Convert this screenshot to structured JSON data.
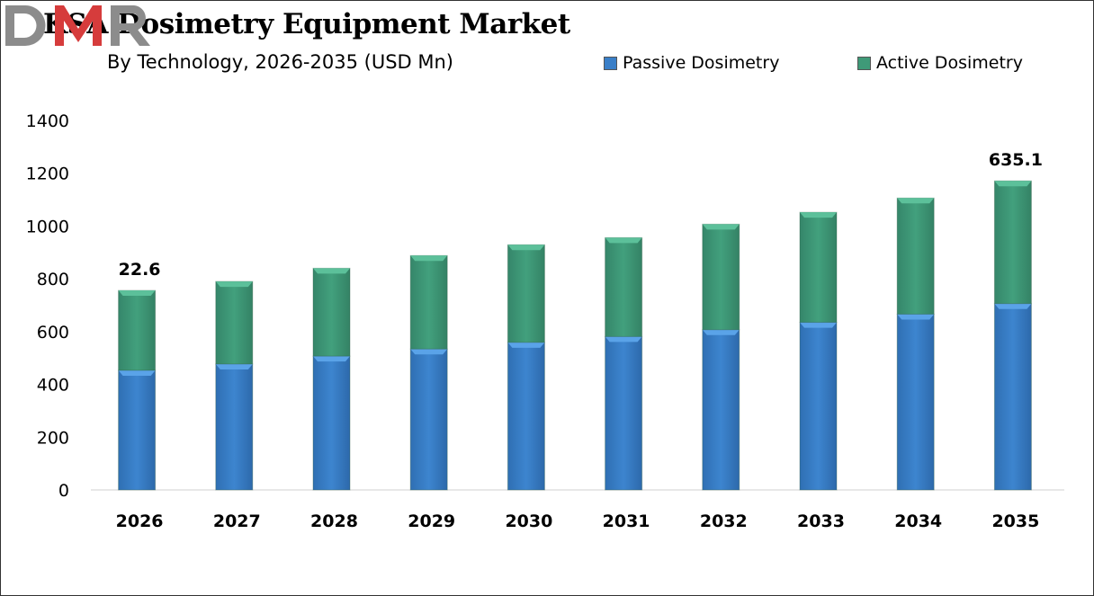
{
  "chart_data": {
    "type": "bar",
    "stacked": true,
    "title": "KSA Dosimetry Equipment Market",
    "subtitle": "By Technology, 2026-2035 (USD Mn)",
    "categories": [
      "2026",
      "2027",
      "2028",
      "2029",
      "2030",
      "2031",
      "2032",
      "2033",
      "2034",
      "2035"
    ],
    "series": [
      {
        "name": "Passive Dosimetry",
        "color": "#3a7fc8",
        "values": [
          453,
          477,
          507,
          534,
          559,
          581,
          607,
          635,
          666,
          706
        ]
      },
      {
        "name": "Active Dosimetry",
        "color": "#3f9a78",
        "values": [
          303,
          313,
          333,
          354,
          370,
          375,
          400,
          417,
          440,
          465
        ]
      }
    ],
    "ylim": [
      0,
      1400
    ],
    "yticks": [
      0,
      200,
      400,
      600,
      800,
      1000,
      1200,
      1400
    ],
    "grid": false,
    "legend": "top-right",
    "annotations": [
      {
        "category": "2026",
        "text": "22.6"
      },
      {
        "category": "2035",
        "text": "635.1"
      }
    ]
  },
  "logo": {
    "text": "DMR",
    "colors": [
      "#8c8c8c",
      "#d63c3c"
    ]
  }
}
